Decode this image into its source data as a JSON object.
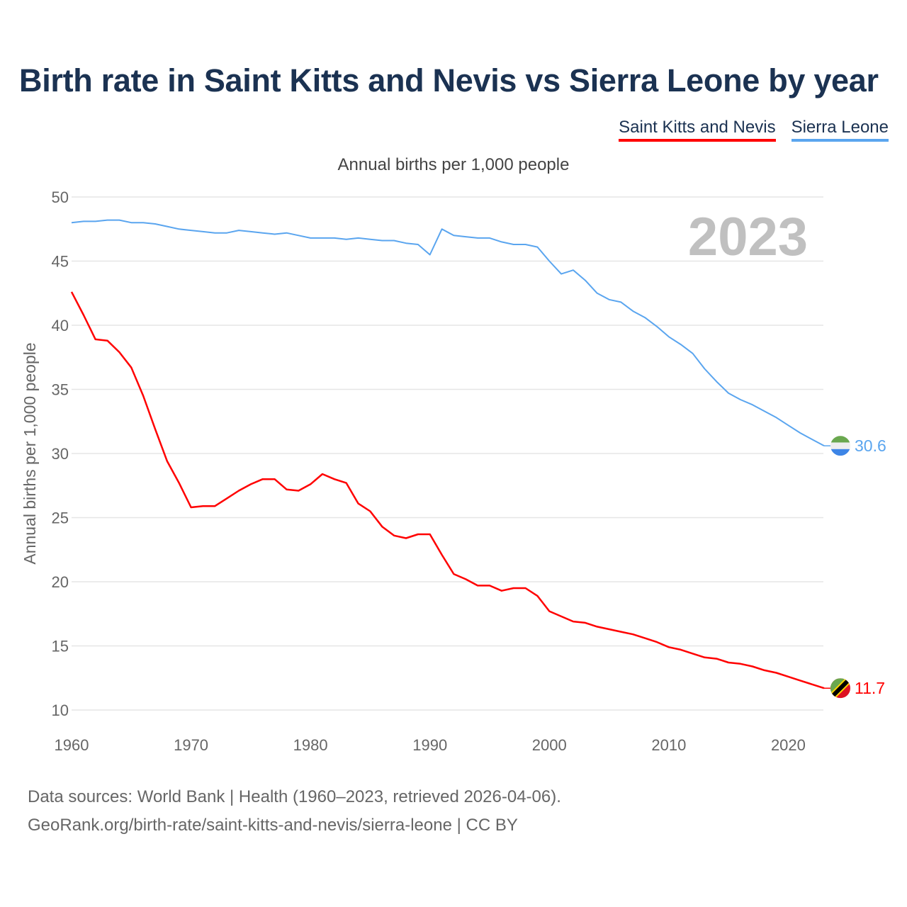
{
  "chart_data": {
    "type": "line",
    "title": "Birth rate in Saint Kitts and Nevis vs Sierra Leone by year",
    "subtitle": "Annual births per 1,000 people",
    "ylabel": "Annual births per 1,000 people",
    "xlabel": "",
    "year_label": "2023",
    "ylim": [
      10,
      50
    ],
    "xlim": [
      1960,
      2023
    ],
    "yticks": [
      10,
      15,
      20,
      25,
      30,
      35,
      40,
      45,
      50
    ],
    "xticks": [
      1960,
      1970,
      1980,
      1990,
      2000,
      2010,
      2020
    ],
    "grid": true,
    "legend_position": "top-right",
    "x": [
      1960,
      1961,
      1962,
      1963,
      1964,
      1965,
      1966,
      1967,
      1968,
      1969,
      1970,
      1971,
      1972,
      1973,
      1974,
      1975,
      1976,
      1977,
      1978,
      1979,
      1980,
      1981,
      1982,
      1983,
      1984,
      1985,
      1986,
      1987,
      1988,
      1989,
      1990,
      1991,
      1992,
      1993,
      1994,
      1995,
      1996,
      1997,
      1998,
      1999,
      2000,
      2001,
      2002,
      2003,
      2004,
      2005,
      2006,
      2007,
      2008,
      2009,
      2010,
      2011,
      2012,
      2013,
      2014,
      2015,
      2016,
      2017,
      2018,
      2019,
      2020,
      2021,
      2022,
      2023
    ],
    "series": [
      {
        "name": "Saint Kitts and Nevis",
        "color": "#ff0000",
        "end_label": "11.7",
        "values": [
          42.6,
          40.8,
          38.9,
          38.8,
          37.9,
          36.7,
          34.5,
          31.9,
          29.4,
          27.7,
          25.8,
          25.9,
          25.9,
          26.5,
          27.1,
          27.6,
          28.0,
          28.0,
          27.2,
          27.1,
          27.6,
          28.4,
          28.0,
          27.7,
          26.1,
          25.5,
          24.3,
          23.6,
          23.4,
          23.7,
          23.7,
          22.1,
          20.6,
          20.2,
          19.7,
          19.7,
          19.3,
          19.5,
          19.5,
          18.9,
          17.7,
          17.3,
          16.9,
          16.8,
          16.5,
          16.3,
          16.1,
          15.9,
          15.6,
          15.3,
          14.9,
          14.7,
          14.4,
          14.1,
          14.0,
          13.7,
          13.6,
          13.4,
          13.1,
          12.9,
          12.6,
          12.3,
          12.0,
          11.7
        ]
      },
      {
        "name": "Sierra Leone",
        "color": "#5aa5ef",
        "end_label": "30.6",
        "values": [
          48.0,
          48.1,
          48.1,
          48.2,
          48.2,
          48.0,
          48.0,
          47.9,
          47.7,
          47.5,
          47.4,
          47.3,
          47.2,
          47.2,
          47.4,
          47.3,
          47.2,
          47.1,
          47.2,
          47.0,
          46.8,
          46.8,
          46.8,
          46.7,
          46.8,
          46.7,
          46.6,
          46.6,
          46.4,
          46.3,
          45.5,
          47.5,
          47.0,
          46.9,
          46.8,
          46.8,
          46.5,
          46.3,
          46.3,
          46.1,
          45.0,
          44.0,
          44.3,
          43.5,
          42.5,
          42.0,
          41.8,
          41.1,
          40.6,
          39.9,
          39.1,
          38.5,
          37.8,
          36.6,
          35.6,
          34.7,
          34.2,
          33.8,
          33.3,
          32.8,
          32.2,
          31.6,
          31.1,
          30.6
        ]
      }
    ]
  },
  "footer": {
    "line1": "Data sources: World Bank | Health (1960–2023, retrieved 2026-04-06).",
    "line2": "GeoRank.org/birth-rate/saint-kitts-and-nevis/sierra-leone | CC BY"
  }
}
